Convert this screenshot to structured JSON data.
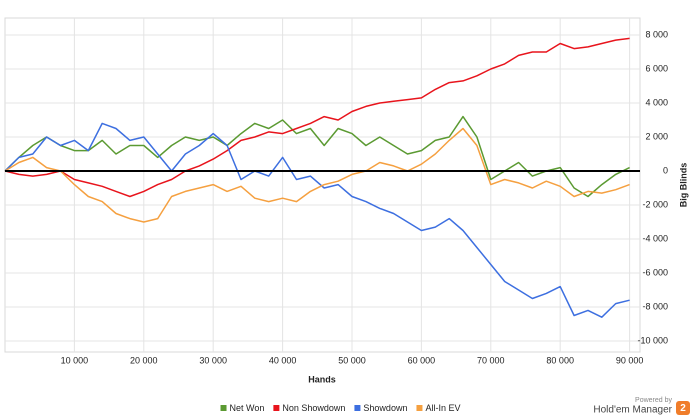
{
  "chart_data": {
    "type": "line",
    "xlabel": "Hands",
    "ylabel": "Big Blinds",
    "x": [
      0,
      2000,
      4000,
      6000,
      8000,
      10000,
      12000,
      14000,
      16000,
      18000,
      20000,
      22000,
      24000,
      26000,
      28000,
      30000,
      32000,
      34000,
      36000,
      38000,
      40000,
      42000,
      44000,
      46000,
      48000,
      50000,
      52000,
      54000,
      56000,
      58000,
      60000,
      62000,
      64000,
      66000,
      68000,
      70000,
      72000,
      74000,
      76000,
      78000,
      80000,
      82000,
      84000,
      86000,
      88000,
      90000
    ],
    "series": [
      {
        "name": "Net Won",
        "color": "#5b9a32",
        "values": [
          0,
          800,
          1500,
          2000,
          1500,
          1200,
          1200,
          1800,
          1000,
          1500,
          1500,
          800,
          1500,
          2000,
          1800,
          2000,
          1500,
          2200,
          2800,
          2500,
          3000,
          2200,
          2500,
          1500,
          2500,
          2200,
          1500,
          2000,
          1500,
          1000,
          1200,
          1800,
          2000,
          3200,
          2000,
          -500,
          0,
          500,
          -300,
          0,
          200,
          -1000,
          -1500,
          -800,
          -200,
          200
        ]
      },
      {
        "name": "Non Showdown",
        "color": "#e8141c",
        "values": [
          0,
          -200,
          -300,
          -200,
          0,
          -500,
          -700,
          -900,
          -1200,
          -1500,
          -1200,
          -800,
          -500,
          0,
          300,
          700,
          1200,
          1800,
          2000,
          2300,
          2200,
          2500,
          2800,
          3200,
          3000,
          3500,
          3800,
          4000,
          4100,
          4200,
          4300,
          4800,
          5200,
          5300,
          5600,
          6000,
          6300,
          6800,
          7000,
          7000,
          7500,
          7200,
          7300,
          7500,
          7700,
          7800
        ]
      },
      {
        "name": "Showdown",
        "color": "#3d6fe0",
        "values": [
          0,
          800,
          1000,
          2000,
          1500,
          1800,
          1200,
          2800,
          2500,
          1800,
          2000,
          1000,
          0,
          1000,
          1500,
          2200,
          1500,
          -500,
          0,
          -300,
          800,
          -500,
          -300,
          -1000,
          -800,
          -1500,
          -1800,
          -2200,
          -2500,
          -3000,
          -3500,
          -3300,
          -2800,
          -3500,
          -4500,
          -5500,
          -6500,
          -7000,
          -7500,
          -7200,
          -6800,
          -8500,
          -8200,
          -8600,
          -7800,
          -7600
        ]
      },
      {
        "name": "All-In EV",
        "color": "#f5a040",
        "values": [
          0,
          500,
          800,
          200,
          0,
          -800,
          -1500,
          -1800,
          -2500,
          -2800,
          -3000,
          -2800,
          -1500,
          -1200,
          -1000,
          -800,
          -1200,
          -900,
          -1600,
          -1800,
          -1600,
          -1800,
          -1200,
          -800,
          -600,
          -200,
          0,
          500,
          300,
          0,
          400,
          1000,
          1800,
          2500,
          1500,
          -800,
          -500,
          -700,
          -1000,
          -600,
          -900,
          -1500,
          -1200,
          -1300,
          -1100,
          -800
        ]
      }
    ],
    "xlim": [
      0,
      91500
    ],
    "xticks": [
      {
        "value": 10000,
        "label": "10 000"
      },
      {
        "value": 20000,
        "label": "20 000"
      },
      {
        "value": 30000,
        "label": "30 000"
      },
      {
        "value": 40000,
        "label": "40 000"
      },
      {
        "value": 50000,
        "label": "50 000"
      },
      {
        "value": 60000,
        "label": "60 000"
      },
      {
        "value": 70000,
        "label": "70 000"
      },
      {
        "value": 80000,
        "label": "80 000"
      },
      {
        "value": 90000,
        "label": "90 000"
      }
    ],
    "ylim": [
      -10650,
      9000
    ],
    "yticks": [
      {
        "value": -10000,
        "label": "-10 000"
      },
      {
        "value": -8000,
        "label": "-8 000"
      },
      {
        "value": -6000,
        "label": "-6 000"
      },
      {
        "value": -4000,
        "label": "-4 000"
      },
      {
        "value": -2000,
        "label": "-2 000"
      },
      0,
      {
        "value": 2000,
        "label": "2 000"
      },
      {
        "value": 4000,
        "label": "4 000"
      },
      {
        "value": 6000,
        "label": "6 000"
      },
      {
        "value": 8000,
        "label": "8 000"
      }
    ],
    "grid": true,
    "legend": "bottom"
  },
  "branding": {
    "powered": "Powered by",
    "product": "Hold'em Manager",
    "version": "2"
  }
}
